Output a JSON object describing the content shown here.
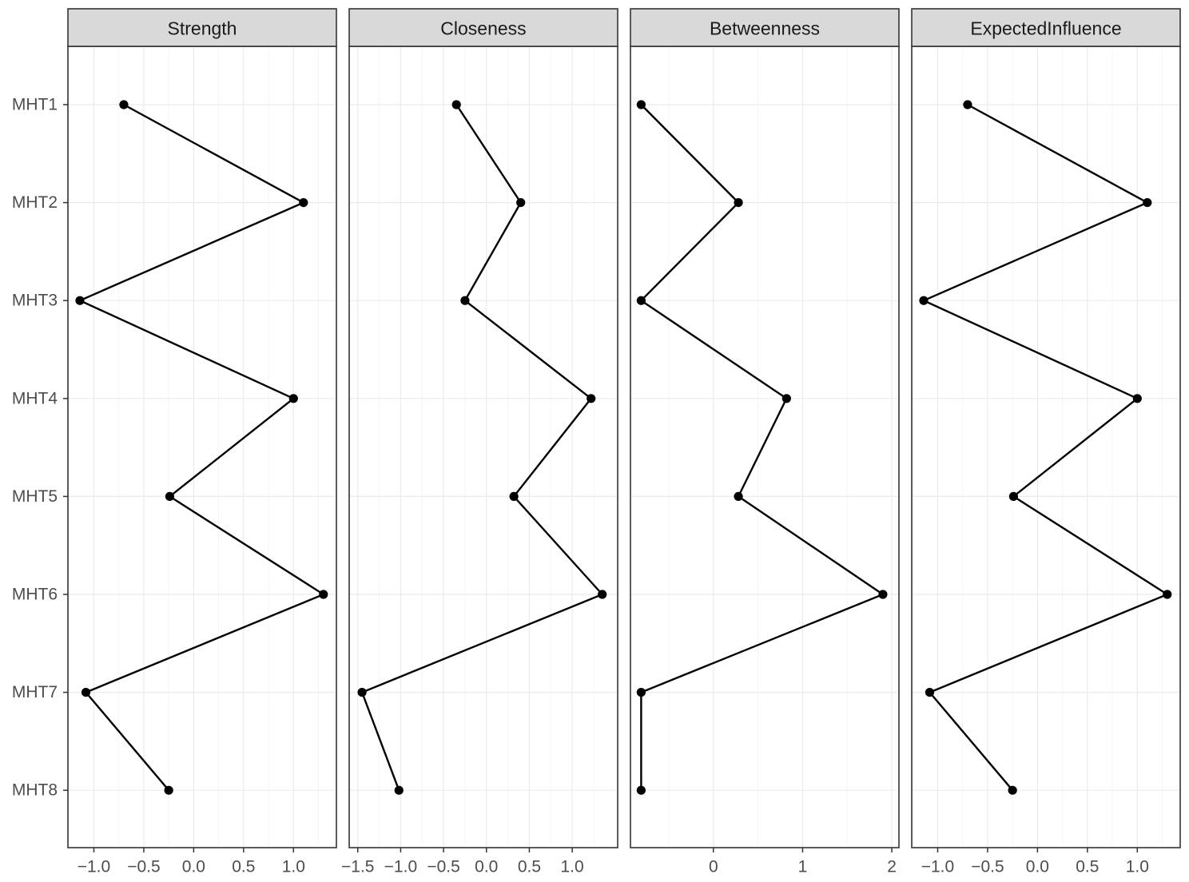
{
  "chart_data": {
    "type": "line",
    "categories": [
      "MHT1",
      "MHT2",
      "MHT3",
      "MHT4",
      "MHT5",
      "MHT6",
      "MHT7",
      "MHT8"
    ],
    "panels": [
      {
        "title": "Strength",
        "xlim": [
          -1.26,
          1.43
        ],
        "ticks": [
          -1.0,
          -0.5,
          0.0,
          0.5,
          1.0
        ],
        "tick_labels": [
          "−1.0",
          "−0.5",
          "0.0",
          "0.5",
          "1.0"
        ],
        "values": [
          -0.7,
          1.1,
          -1.14,
          1.0,
          -0.24,
          1.3,
          -1.08,
          -0.25
        ]
      },
      {
        "title": "Closeness",
        "xlim": [
          -1.6,
          1.53
        ],
        "ticks": [
          -1.5,
          -1.0,
          -0.5,
          0.0,
          0.5,
          1.0
        ],
        "tick_labels": [
          "−1.5",
          "−1.0",
          "−0.5",
          "0.0",
          "0.5",
          "1.0"
        ],
        "values": [
          -0.35,
          0.4,
          -0.25,
          1.22,
          0.32,
          1.35,
          -1.45,
          -1.02
        ]
      },
      {
        "title": "Betweenness",
        "xlim": [
          -0.93,
          2.08
        ],
        "ticks": [
          0,
          1,
          2
        ],
        "tick_labels": [
          "0",
          "1",
          "2"
        ],
        "values": [
          -0.81,
          0.28,
          -0.81,
          0.82,
          0.28,
          1.9,
          -0.81,
          -0.81
        ]
      },
      {
        "title": "ExpectedInfluence",
        "xlim": [
          -1.26,
          1.43
        ],
        "ticks": [
          -1.0,
          -0.5,
          0.0,
          0.5,
          1.0
        ],
        "tick_labels": [
          "−1.0",
          "−0.5",
          "0.0",
          "0.5",
          "1.0"
        ],
        "values": [
          -0.7,
          1.1,
          -1.14,
          1.0,
          -0.24,
          1.3,
          -1.08,
          -0.25
        ]
      }
    ],
    "grid": true,
    "legend": "none",
    "colors": {
      "line": "#000000",
      "point": "#000000",
      "strip_fill": "#d9d9d9",
      "panel_border": "#333333",
      "grid_major": "#ebebeb",
      "grid_minor": "#f5f5f5",
      "tick_text": "#4d4d4d",
      "strip_text": "#1a1a1a"
    }
  }
}
